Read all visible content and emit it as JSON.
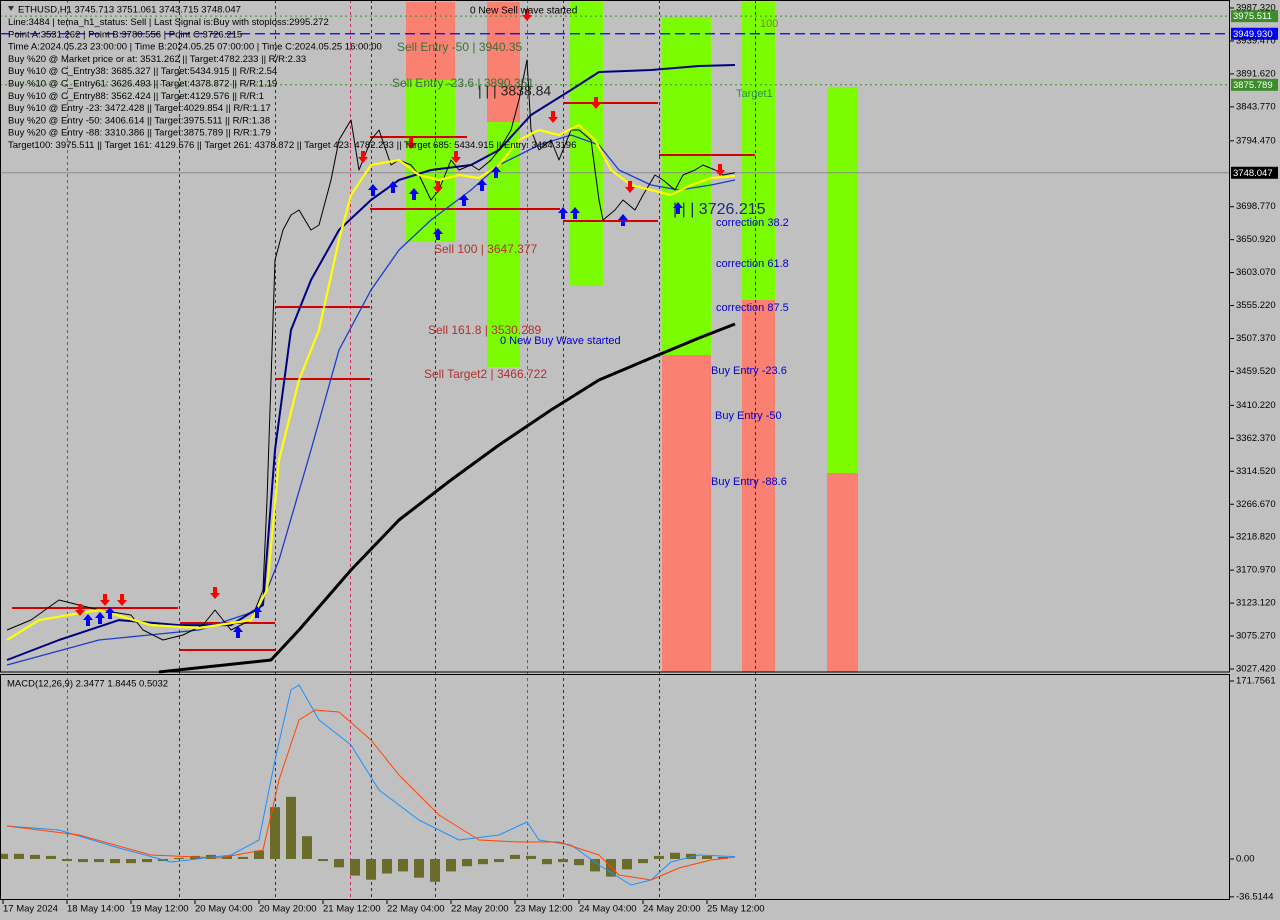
{
  "chart_data": [
    {
      "type": "line",
      "title": "ETHUSD,H1  3745.713 3751.061 3743.715 3748.047",
      "text_lines": [
        "Line:3484 | tema_h1_status: Sell | Last Signal is:Buy with stoploss:2995.272",
        "Point A:3531.262 | Point B:3780.556 | Point C:3726.215",
        "Time A:2024.05.23 23:00:00 | Time B:2024.05.25 07:00:00 | Time C:2024.05.25 16:00:00",
        "Buy %20 @ Market price or at: 3531.262 || Target:4782.233 || R/R:2.33",
        "Buy %10 @ C_Entry38: 3685.327 || Target:5434.915 || R/R:2.54",
        "Buy %10 @ C_Entry61: 3626.493 || Target:4378.872 || R/R:1.19",
        "Buy %10 @ C_Entry88: 3562.424 || Target:4129.576 || R/R:1",
        "Buy %10 @ Entry -23: 3472.428 || Target:4029.854 || R/R:1.17",
        "Buy %20 @ Entry -50: 3406.614 || Target:3975.511 || R/R:1.38",
        "Buy %20 @ Entry -88: 3310.386 || Target:3875.789 || R/R:1.79",
        "Target100: 3975.511 || Target 161: 4129.576 || Target 261: 4378.872 || Target 423: 4782.233 || Target 685: 5434.915 || Entry: 3484.3196"
      ],
      "xlim": [
        -0.75,
        306.75
      ],
      "xticks": [
        {
          "value": 0,
          "label": "17 May 2024"
        },
        {
          "value": 16,
          "label": "18 May 14:00"
        },
        {
          "value": 32,
          "label": "19 May 12:00"
        },
        {
          "value": 48,
          "label": "20 May 04:00"
        },
        {
          "value": 64,
          "label": "20 May 20:00"
        },
        {
          "value": 80,
          "label": "21 May 12:00"
        },
        {
          "value": 96,
          "label": "22 May 04:00"
        },
        {
          "value": 112,
          "label": "22 May 20:00"
        },
        {
          "value": 128,
          "label": "23 May 12:00"
        },
        {
          "value": 144,
          "label": "24 May 04:00"
        },
        {
          "value": 160,
          "label": "24 May 20:00"
        },
        {
          "value": 176,
          "label": "25 May 12:00"
        }
      ],
      "ylim": [
        3023.06,
        3998.94
      ],
      "yticks": [
        {
          "value": 3987.32,
          "label": "3987.320"
        },
        {
          "value": 3939.47,
          "label": "3939.470"
        },
        {
          "value": 3891.62,
          "label": "3891.620"
        },
        {
          "value": 3843.77,
          "label": "3843.770"
        },
        {
          "value": 3794.47,
          "label": "3794.470"
        },
        {
          "value": 3698.77,
          "label": "3698.770"
        },
        {
          "value": 3650.92,
          "label": "3650.920"
        },
        {
          "value": 3603.07,
          "label": "3603.070"
        },
        {
          "value": 3555.22,
          "label": "3555.220"
        },
        {
          "value": 3507.37,
          "label": "3507.370"
        },
        {
          "value": 3459.52,
          "label": "3459.520"
        },
        {
          "value": 3410.22,
          "label": "3410.220"
        },
        {
          "value": 3362.37,
          "label": "3362.370"
        },
        {
          "value": 3314.52,
          "label": "3314.520"
        },
        {
          "value": 3266.67,
          "label": "3266.670"
        },
        {
          "value": 3218.82,
          "label": "3218.820"
        },
        {
          "value": 3170.97,
          "label": "3170.970"
        },
        {
          "value": 3123.12,
          "label": "3123.120"
        },
        {
          "value": 3075.27,
          "label": "3075.270"
        },
        {
          "value": 3027.42,
          "label": "3027.420"
        }
      ],
      "zones": [
        {
          "x": [
            100.75,
            113
          ],
          "y": [
            3882.77,
            3996.04
          ],
          "color": "#fa8072"
        },
        {
          "x": [
            100.75,
            113
          ],
          "y": [
            3647.51,
            3882.77
          ],
          "color": "#7cfc00"
        },
        {
          "x": [
            121,
            129.25
          ],
          "y": [
            3821.77,
            3996.04
          ],
          "color": "#fa8072"
        },
        {
          "x": [
            121,
            129.25
          ],
          "y": [
            3465.99,
            3821.77
          ],
          "color": "#7cfc00"
        },
        {
          "x": [
            141.75,
            150
          ],
          "y": [
            3583.62,
            3996.04
          ],
          "color": "#7cfc00"
        },
        {
          "x": [
            164.75,
            177
          ],
          "y": [
            3483.41,
            3974.25
          ],
          "color": "#7cfc00"
        },
        {
          "x": [
            164.75,
            177
          ],
          "y": [
            3023.06,
            3483.41
          ],
          "color": "#fa8072"
        },
        {
          "x": [
            184.75,
            193
          ],
          "y": [
            3563.29,
            3996.04
          ],
          "color": "#7cfc00"
        },
        {
          "x": [
            184.75,
            193
          ],
          "y": [
            3023.06,
            3563.29
          ],
          "color": "#fa8072"
        },
        {
          "x": [
            206,
            213.75
          ],
          "y": [
            3312.06,
            3872.6
          ],
          "color": "#7cfc00"
        },
        {
          "x": [
            206,
            213.75
          ],
          "y": [
            3023.06,
            3312.06
          ],
          "color": "#fa8072"
        }
      ],
      "segments": [
        {
          "x": [
            2.25,
            43.75
          ],
          "y": 3116.0
        },
        {
          "x": [
            44.25,
            68
          ],
          "y": 3094.2
        },
        {
          "x": [
            44.25,
            68
          ],
          "y": 3055.0
        },
        {
          "x": [
            68,
            91.75
          ],
          "y": 3553.1
        },
        {
          "x": [
            68,
            91.75
          ],
          "y": 3448.6
        },
        {
          "x": [
            91.75,
            116
          ],
          "y": 3800.0
        },
        {
          "x": [
            91.75,
            139.25
          ],
          "y": 3695.4
        },
        {
          "x": [
            140,
            163.75
          ],
          "y": 3849.4
        },
        {
          "x": [
            140,
            163.75
          ],
          "y": 3678.0
        },
        {
          "x": [
            164,
            188
          ],
          "y": 3773.9
        }
      ],
      "segment_color": "#d40000",
      "levels": [
        {
          "value": 3975.511,
          "label": "3975.511",
          "color": "#3c8c28",
          "style": "dotted"
        },
        {
          "value": 3949.93,
          "label": "3949.930",
          "color": "#0000ff",
          "style": "dashed"
        },
        {
          "value": 3875.789,
          "label": "3875.789",
          "color": "#3c8c28",
          "style": "dotted"
        },
        {
          "value": 3748.047,
          "label": "3748.047",
          "color": "#000000",
          "style": "solid"
        }
      ],
      "series": [
        {
          "color": "#000000",
          "width": 3,
          "x": [
            39,
            67,
            74,
            87,
            99,
            112,
            124,
            137,
            149,
            162,
            174,
            183
          ],
          "values": [
            3023.1,
            3040.5,
            3084.0,
            3171.2,
            3243.8,
            3301.9,
            3352.7,
            3403.5,
            3447.1,
            3479.0,
            3508.1,
            3528.4
          ]
        },
        {
          "color": "#1e3cc8",
          "width": 1.3,
          "x": [
            1,
            24,
            49,
            64,
            69,
            77,
            84,
            92,
            99,
            107,
            117,
            124,
            134,
            142,
            149,
            154,
            162,
            169,
            177,
            183
          ],
          "values": [
            3033.2,
            3069.5,
            3084.0,
            3113.1,
            3185.7,
            3345.4,
            3490.7,
            3577.8,
            3635.9,
            3679.5,
            3723.0,
            3759.3,
            3788.4,
            3802.9,
            3788.4,
            3752.1,
            3730.3,
            3723.0,
            3730.3,
            3737.6
          ]
        },
        {
          "color": "#000080",
          "width": 2,
          "x": [
            1,
            14,
            29,
            44,
            57,
            65,
            68,
            72,
            77,
            84,
            92,
            99,
            107,
            117,
            124,
            132,
            142,
            149,
            162,
            174,
            183
          ],
          "values": [
            3040.5,
            3069.5,
            3098.5,
            3091.2,
            3091.2,
            3120.3,
            3345.4,
            3519.7,
            3592.3,
            3664.9,
            3708.5,
            3737.5,
            3752.1,
            3759.3,
            3781.1,
            3832.0,
            3868.2,
            3894.4,
            3897.3,
            3903.1,
            3904.5
          ]
        },
        {
          "color": "#000000",
          "width": 1,
          "x": [
            1,
            7,
            14,
            19,
            24,
            32,
            35,
            40,
            45,
            50,
            53,
            57,
            62,
            65,
            66,
            67,
            68,
            70,
            72,
            74,
            77,
            79,
            82,
            84,
            87,
            89,
            92,
            94,
            97,
            99,
            102,
            104,
            107,
            109,
            112,
            114,
            117,
            119,
            122,
            124,
            127,
            129,
            131,
            132,
            134,
            137,
            139,
            142,
            144,
            147,
            149,
            150,
            153,
            155,
            158,
            160,
            163,
            165,
            168,
            170,
            173,
            175,
            178,
            180,
            183
          ],
          "values": [
            3084.1,
            3098.6,
            3127.6,
            3120.4,
            3113.1,
            3105.9,
            3084.1,
            3069.5,
            3076.8,
            3091.3,
            3113.1,
            3084.1,
            3098.6,
            3142.2,
            3272.9,
            3447.1,
            3621.4,
            3664.9,
            3686.7,
            3694.0,
            3664.9,
            3672.2,
            3737.6,
            3795.6,
            3824.7,
            3752.1,
            3795.6,
            3810.2,
            3759.3,
            3766.6,
            3759.3,
            3744.8,
            3708.5,
            3723.0,
            3766.6,
            3752.1,
            3759.3,
            3752.1,
            3766.6,
            3781.1,
            3810.2,
            3853.7,
            3911.8,
            3810.2,
            3781.1,
            3795.6,
            3766.6,
            3810.2,
            3810.2,
            3795.6,
            3708.5,
            3679.5,
            3694.0,
            3708.5,
            3694.0,
            3715.8,
            3744.8,
            3737.6,
            3723.0,
            3744.8,
            3752.1,
            3759.3,
            3752.1,
            3744.8,
            3748.0
          ]
        },
        {
          "color": "#ffff00",
          "width": 2.2,
          "x": [
            1,
            9,
            24,
            37,
            49,
            62,
            66,
            69,
            74,
            79,
            84,
            87,
            92,
            99,
            104,
            109,
            114,
            119,
            124,
            129,
            134,
            139,
            144,
            148,
            152,
            157,
            162,
            167,
            172,
            177,
            183
          ],
          "values": [
            3069.5,
            3098.5,
            3113.1,
            3091.2,
            3086.9,
            3098.5,
            3142.1,
            3330.9,
            3447.1,
            3519.7,
            3650.4,
            3715.8,
            3759.3,
            3766.6,
            3744.8,
            3737.5,
            3744.8,
            3740.4,
            3759.3,
            3795.6,
            3810.2,
            3802.9,
            3817.4,
            3795.6,
            3752.1,
            3730.3,
            3723.0,
            3715.8,
            3730.3,
            3740.4,
            3743.3
          ]
        }
      ],
      "annotations": [
        {
          "text": "0 New Sell wave started",
          "color": "#000000"
        },
        {
          "text": "Sell Entry -50 | 3940.35",
          "color": "#3c6e3c"
        },
        {
          "text": "Sell Entry -23.6 | 3890.351",
          "color": "#3c6e3c"
        },
        {
          "text": "| | | 3838.84",
          "color": "#222222"
        },
        {
          "text": "Sell 100 | 3647.377",
          "color": "#b03030"
        },
        {
          "text": "Sell 161.8 | 3530.289",
          "color": "#b03030"
        },
        {
          "text": "Sell Target2 | 3466.722",
          "color": "#b03030"
        },
        {
          "text": "0 New Buy Wave started",
          "color": "#0000cd"
        },
        {
          "text": "| | | 3726.215",
          "color": "#1c2d7a"
        },
        {
          "text": "correction 38.2",
          "color": "#0000cd"
        },
        {
          "text": "correction 61.8",
          "color": "#0000cd"
        },
        {
          "text": "correction 87.5",
          "color": "#0000cd"
        },
        {
          "text": "Buy Entry -23.6",
          "color": "#0000cd"
        },
        {
          "text": "Buy Entry -50",
          "color": "#0000cd"
        },
        {
          "text": "Buy Entry -88.6",
          "color": "#0000cd"
        },
        {
          "text": "Target1",
          "color": "#2e8b57"
        },
        {
          "text": "100",
          "color": "#6b8e23"
        }
      ]
    },
    {
      "type": "macd",
      "title": "MACD(12,26,9) 2.3477 1.8445 0.5032",
      "ylim": [
        -39.56,
        176.58
      ],
      "yticks": [
        171.7561,
        {
          "value": 0,
          "label": "0.00"
        },
        -36.5144
      ],
      "histogram": {
        "color": "#6b6b2a",
        "x": [
          0,
          4,
          8,
          12,
          16,
          20,
          24,
          28,
          32,
          36,
          40,
          44,
          48,
          52,
          56,
          60,
          64,
          68,
          72,
          76,
          80,
          84,
          88,
          92,
          96,
          100,
          104,
          108,
          112,
          116,
          120,
          124,
          128,
          132,
          136,
          140,
          144,
          148,
          152,
          156,
          160,
          164,
          168,
          172,
          176,
          180
        ],
        "values": [
          5,
          5,
          4,
          3,
          -2,
          -3,
          -3,
          -4,
          -4,
          -3,
          -2,
          1,
          3,
          4,
          3,
          2,
          8,
          50,
          60,
          22,
          -2,
          -8,
          -16,
          -20,
          -14,
          -12,
          -18,
          -22,
          -12,
          -7,
          -5,
          -3,
          4,
          3,
          -5,
          -3,
          -6,
          -12,
          -17,
          -10,
          -4,
          3,
          6,
          5,
          3,
          2
        ]
      },
      "series": [
        {
          "color": "#1e90ff",
          "width": 1,
          "x": [
            1,
            14,
            29,
            42,
            57,
            64,
            68,
            72,
            74,
            79,
            87,
            94,
            104,
            114,
            124,
            131,
            134,
            142,
            149,
            157,
            162,
            167,
            174,
            183
          ],
          "values": [
            31.8,
            28.0,
            10.6,
            -2.9,
            3.9,
            18.3,
            95.5,
            163.1,
            168.0,
            134.2,
            110.0,
            66.6,
            37.6,
            18.3,
            23.2,
            35.7,
            18.3,
            13.5,
            -5.8,
            -25.1,
            -20.3,
            -2.9,
            3.9,
            2.3477
          ]
        },
        {
          "color": "#ff4500",
          "width": 1,
          "x": [
            1,
            19,
            37,
            54,
            65,
            69,
            74,
            78,
            84,
            92,
            99,
            109,
            119,
            129,
            139,
            149,
            154,
            162,
            169,
            177,
            183
          ],
          "values": [
            31.8,
            23.2,
            3.9,
            1.0,
            8.7,
            76.2,
            134.1,
            143.8,
            141.8,
            114.8,
            81.1,
            42.5,
            18.3,
            16.4,
            16.4,
            3.9,
            -15.4,
            -20.3,
            -8.7,
            -1.0,
            1.8445
          ]
        }
      ]
    }
  ]
}
